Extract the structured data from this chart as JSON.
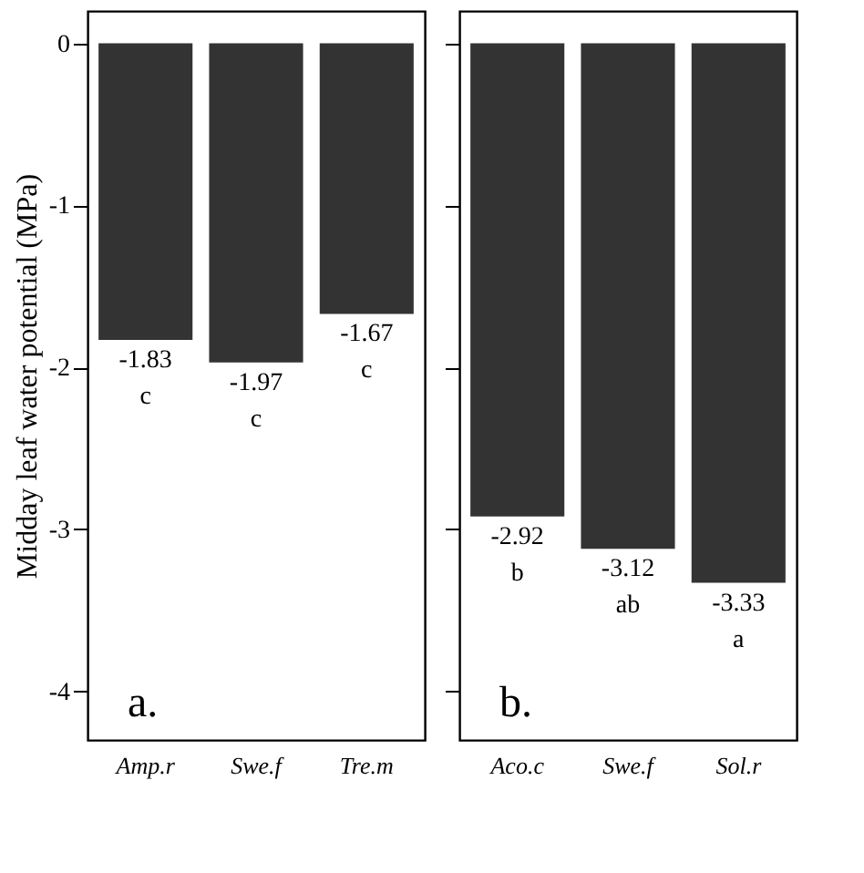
{
  "chart_data": [
    {
      "type": "bar",
      "categories": [
        "Amp.r",
        "Swe.f",
        "Tre.m"
      ],
      "values": [
        -1.83,
        -1.97,
        -1.67
      ],
      "color": "#333333",
      "ylabel": "Midday leaf water potential (MPa)",
      "ylim": [
        -4.3,
        0.2
      ],
      "yticks": [
        0,
        -1,
        -2,
        -3,
        -4
      ],
      "data_labels": true,
      "grid": false,
      "annotations": [
        {
          "text": "c",
          "x": "Amp.r",
          "y": -1.83
        },
        {
          "text": "c",
          "x": "Swe.f",
          "y": -1.97
        },
        {
          "text": "c",
          "x": "Tre.m",
          "y": -1.67
        },
        "a."
      ]
    },
    {
      "type": "bar",
      "categories": [
        "Aco.c",
        "Swe.f",
        "Sol.r"
      ],
      "values": [
        -2.92,
        -3.12,
        -3.33
      ],
      "color": "#333333",
      "ylim": [
        -4.3,
        0.2
      ],
      "data_labels": true,
      "grid": false,
      "tick_labels": "x",
      "annotations": [
        {
          "text": "b",
          "x": "Aco.c",
          "y": -2.92
        },
        {
          "text": "ab",
          "x": "Swe.f",
          "y": -3.12
        },
        {
          "text": "a",
          "x": "Sol.r",
          "y": -3.33
        },
        "b."
      ]
    }
  ]
}
